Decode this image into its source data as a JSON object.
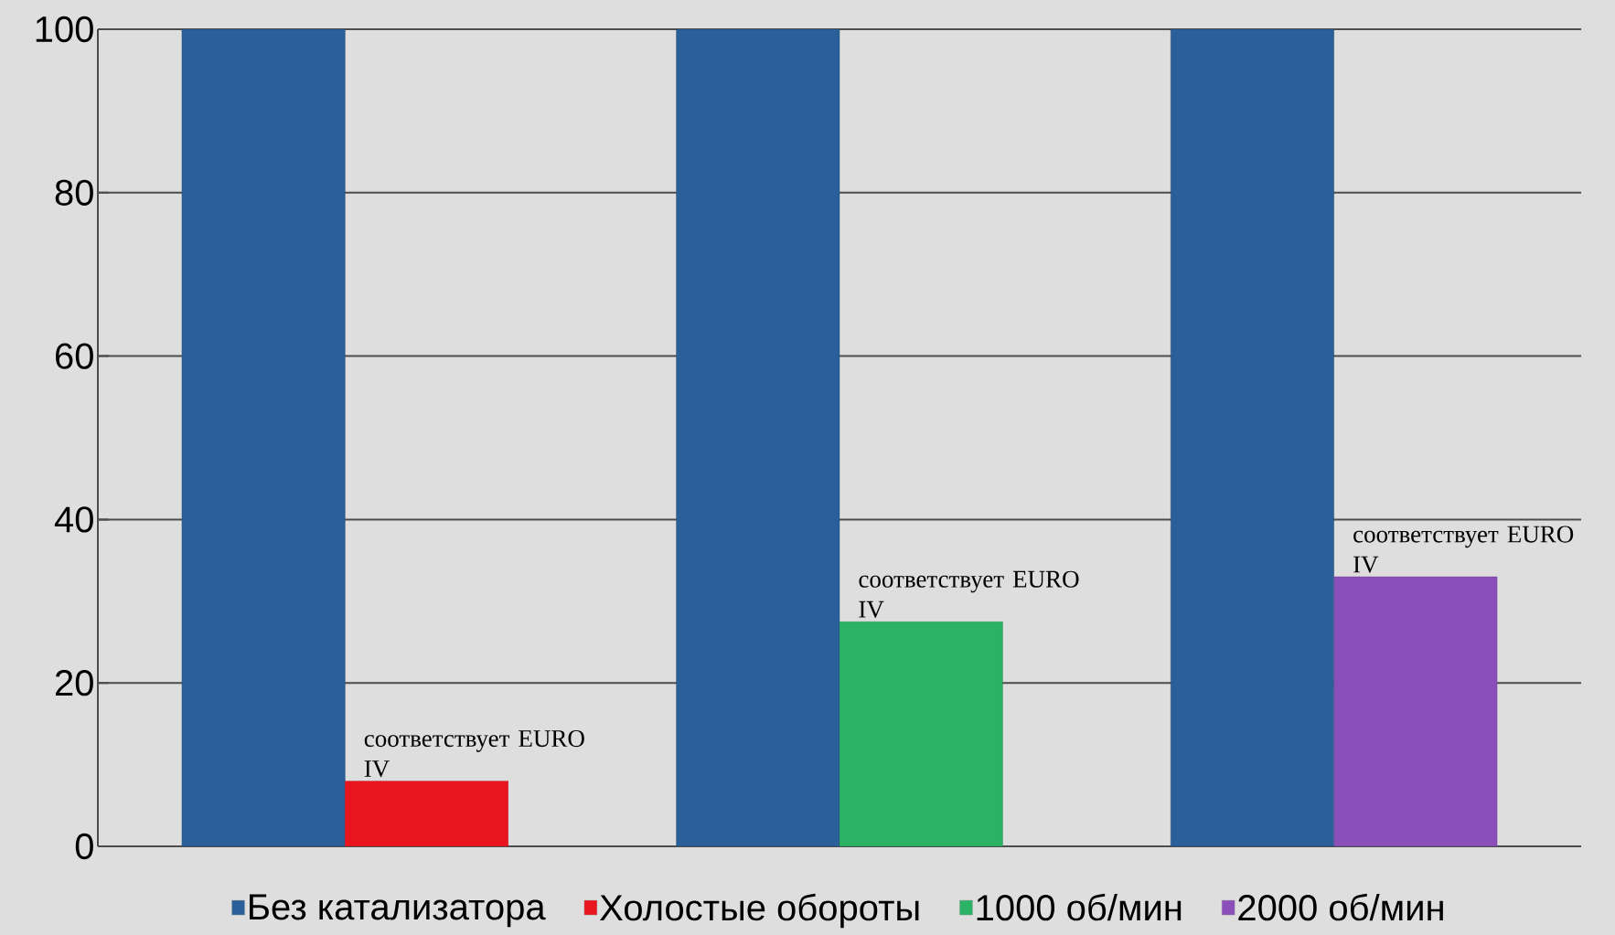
{
  "chart_data": {
    "type": "bar",
    "categories": [
      null,
      null,
      null
    ],
    "series": [
      {
        "name": "Без катализатора",
        "color": "#2a5f9a",
        "values": [
          100,
          100,
          100
        ]
      },
      {
        "name": "Холостые обороты",
        "color": "#e8141e",
        "values": [
          8,
          null,
          null
        ],
        "value_labels": [
          "соответствует EURO IV",
          null,
          null
        ]
      },
      {
        "name": "1000 об/мин",
        "color": "#2bb265",
        "values": [
          null,
          27.5,
          null
        ],
        "value_labels": [
          null,
          "соответствует EURO IV",
          null
        ]
      },
      {
        "name": "2000 об/мин",
        "color": "#8a4fb8",
        "values": [
          null,
          null,
          33
        ],
        "value_labels": [
          null,
          null,
          "соответствует EURO IV"
        ]
      }
    ],
    "ylim": [
      0,
      100
    ],
    "yticks": [
      0,
      20,
      40,
      60,
      80,
      100
    ],
    "grid": "y",
    "legend": "bottom"
  }
}
